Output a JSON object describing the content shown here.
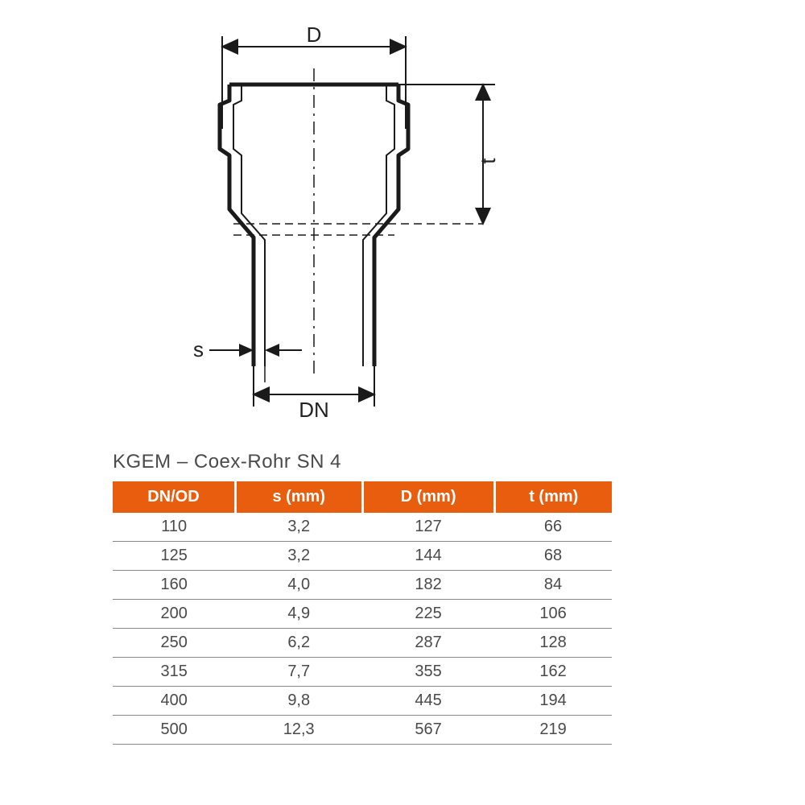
{
  "diagram": {
    "labels": {
      "D": "D",
      "t": "t",
      "s": "s",
      "DN": "DN"
    },
    "stroke_color": "#1a1a1a",
    "stroke_width_main": 5,
    "stroke_width_dim": 2,
    "dash_pattern": "14 8 3 8",
    "label_fontsize": 26
  },
  "table": {
    "title": "KGEM – Coex-Rohr SN 4",
    "title_fontsize": 24,
    "header_bg": "#e95d0f",
    "header_color": "#ffffff",
    "cell_color": "#4a4a4a",
    "border_color": "#888888",
    "columns": [
      "DN/OD",
      "s (mm)",
      "D (mm)",
      "t (mm)"
    ],
    "rows": [
      [
        "110",
        "3,2",
        "127",
        "66"
      ],
      [
        "125",
        "3,2",
        "144",
        "68"
      ],
      [
        "160",
        "4,0",
        "182",
        "84"
      ],
      [
        "200",
        "4,9",
        "225",
        "106"
      ],
      [
        "250",
        "6,2",
        "287",
        "128"
      ],
      [
        "315",
        "7,7",
        "355",
        "162"
      ],
      [
        "400",
        "9,8",
        "445",
        "194"
      ],
      [
        "500",
        "12,3",
        "567",
        "219"
      ]
    ]
  }
}
